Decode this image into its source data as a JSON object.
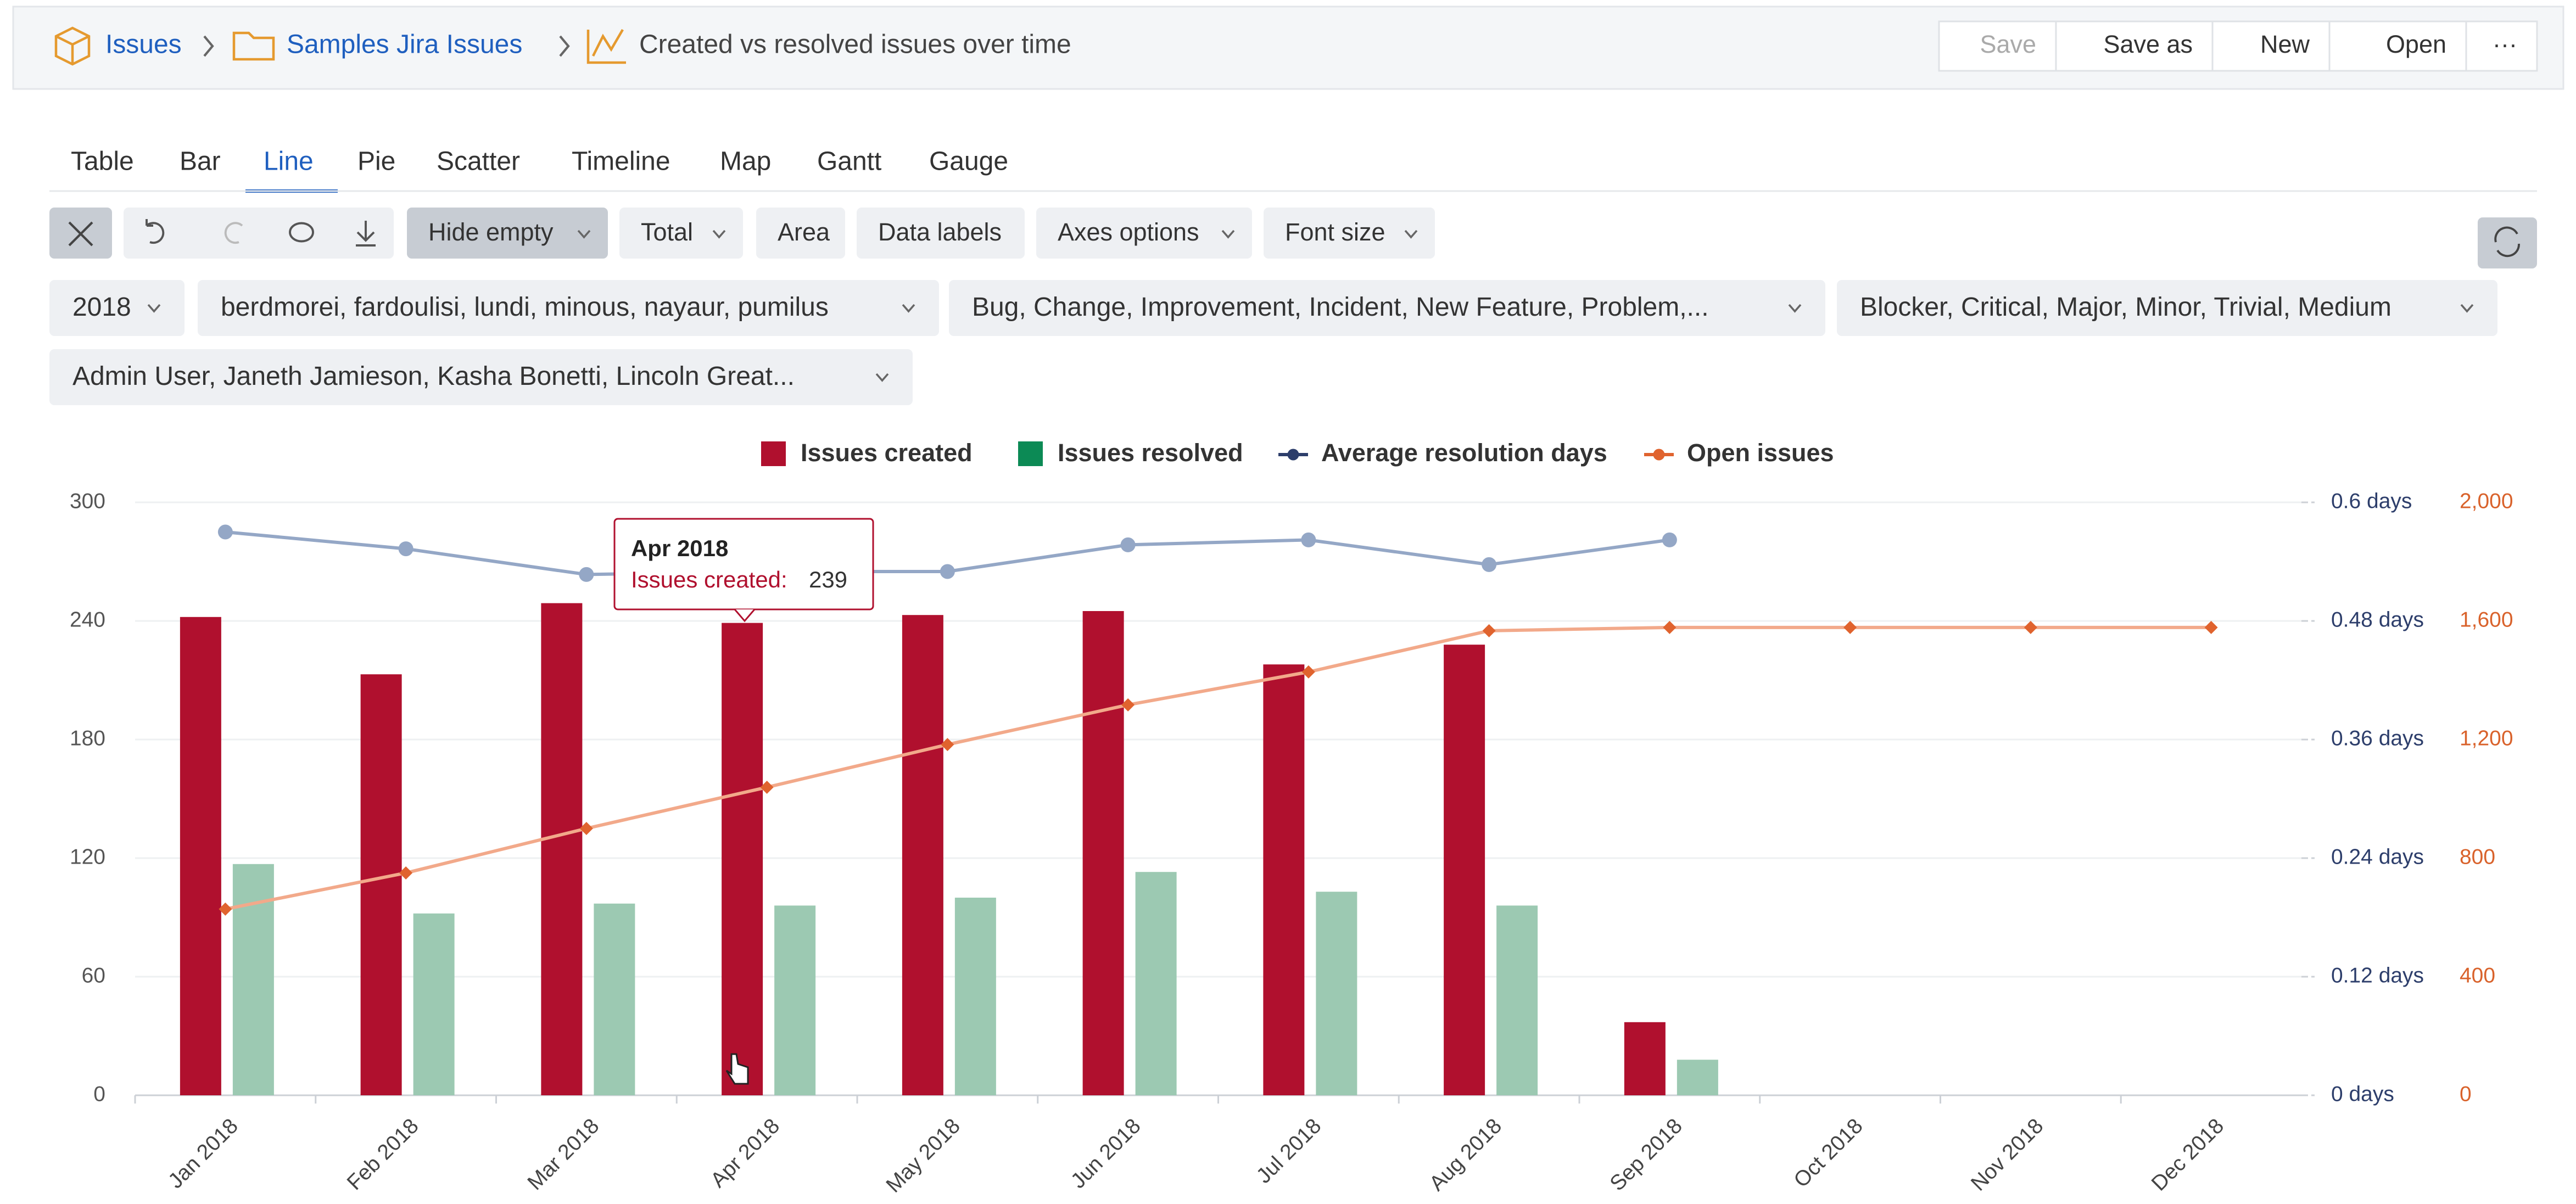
{
  "header": {
    "breadcrumbs": [
      "Issues",
      "Samples Jira Issues",
      "Created vs resolved issues over time"
    ],
    "actions": [
      "Save",
      "Save as",
      "New",
      "Open",
      "···"
    ]
  },
  "tabs": [
    "Table",
    "Bar",
    "Line",
    "Pie",
    "Scatter",
    "Timeline",
    "Map",
    "Gantt",
    "Gauge"
  ],
  "toolbar": [
    "Hide empty",
    "Total",
    "Area",
    "Data labels",
    "Axes options",
    "Font size"
  ],
  "filters": [
    "2018",
    "berdmorei, fardoulisi, lundi, minous, nayaur, pumilus",
    "Bug, Change, Improvement, Incident, New Feature, Problem,...",
    "Blocker, Critical, Major, Minor, Trivial, Medium",
    "Admin User, Janeth Jamieson, Kasha Bonetti, Lincoln Great..."
  ],
  "tooltip": {
    "label": "Issues created:"
  },
  "chart_data": {
    "type": "combo",
    "categories": [
      "Jan 2018",
      "Feb 2018",
      "Mar 2018",
      "Apr 2018",
      "May 2018",
      "Jun 2018",
      "Jul 2018",
      "Aug 2018",
      "Sep 2018",
      "Oct 2018",
      "Nov 2018",
      "Dec 2018"
    ],
    "series": [
      {
        "name": "Issues created",
        "type": "bar",
        "color": "#b0102e",
        "values": [
          242,
          213,
          249,
          239,
          243,
          245,
          218,
          228,
          37,
          null,
          null,
          null
        ]
      },
      {
        "name": "Issues resolved",
        "type": "bar",
        "color": "#9cc9b2",
        "legend_color": "#0c8a55",
        "values": [
          117,
          92,
          97,
          96,
          100,
          113,
          103,
          96,
          18,
          null,
          null,
          null
        ]
      },
      {
        "name": "Average resolution days",
        "type": "line",
        "axis": "y2",
        "color": "#94a7c6",
        "legend_color": "#2d3e6b",
        "values": [
          0.57,
          0.553,
          0.527,
          0.53,
          0.53,
          0.557,
          0.562,
          0.537,
          0.562,
          null,
          null,
          null
        ]
      },
      {
        "name": "Open issues",
        "type": "line",
        "axis": "y3",
        "color": "#f2a98a",
        "legend_color": "#e0632e",
        "values": [
          628,
          750,
          900,
          1039,
          1183,
          1317,
          1428,
          1567,
          1578,
          1578,
          1578,
          1578
        ]
      }
    ],
    "ylim": [
      0,
      300
    ],
    "yticks": [
      0,
      60,
      120,
      180,
      240,
      300
    ],
    "y2lim": [
      0,
      0.6
    ],
    "y2ticks": [
      {
        "value": 0,
        "label": "0 days"
      },
      {
        "value": 0.12,
        "label": "0.12 days"
      },
      {
        "value": 0.24,
        "label": "0.24 days"
      },
      {
        "value": 0.36,
        "label": "0.36 days"
      },
      {
        "value": 0.48,
        "label": "0.48 days"
      },
      {
        "value": 0.6,
        "label": "0.6 days"
      }
    ],
    "y3lim": [
      0,
      2000
    ],
    "y3ticks": [
      0,
      400,
      800,
      {
        "value": 1200,
        "label": "1,200"
      },
      {
        "value": 1600,
        "label": "1,600"
      },
      {
        "value": 2000,
        "label": "2,000"
      }
    ],
    "grid": true,
    "legend": "top"
  }
}
